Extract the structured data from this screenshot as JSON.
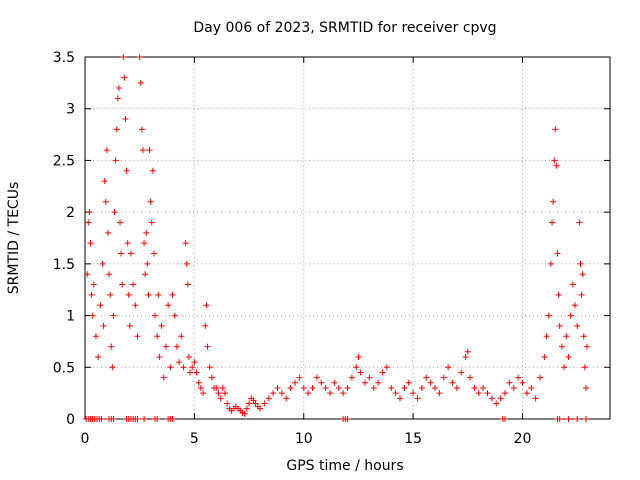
{
  "chart_data": {
    "type": "scatter",
    "title": "Day 006 of 2023, SRMTID for receiver cpvg",
    "xlabel": "GPS time / hours",
    "ylabel": "SRMTID / TECUs",
    "xlim": [
      0,
      24
    ],
    "ylim": [
      0,
      3.5
    ],
    "x_ticks": [
      0,
      5,
      10,
      15,
      20
    ],
    "y_ticks": [
      0,
      0.5,
      1,
      1.5,
      2,
      2.5,
      3,
      3.5
    ],
    "grid": true,
    "marker": "+",
    "series": [
      {
        "name": "SRMTID",
        "color": "#ff0000",
        "points": [
          [
            0.05,
            0
          ],
          [
            0.15,
            0
          ],
          [
            0.25,
            0
          ],
          [
            0.35,
            0
          ],
          [
            0.45,
            0
          ],
          [
            0.55,
            0
          ],
          [
            0.65,
            0
          ],
          [
            0.75,
            0
          ],
          [
            1.1,
            0
          ],
          [
            1.2,
            0
          ],
          [
            1.3,
            0
          ],
          [
            1.9,
            0
          ],
          [
            2.0,
            0
          ],
          [
            2.1,
            0
          ],
          [
            2.2,
            0
          ],
          [
            2.3,
            0
          ],
          [
            2.4,
            0
          ],
          [
            2.7,
            0
          ],
          [
            3.2,
            0
          ],
          [
            3.3,
            0
          ],
          [
            3.8,
            0
          ],
          [
            3.9,
            0
          ],
          [
            4.0,
            0
          ],
          [
            11.8,
            0
          ],
          [
            11.9,
            0
          ],
          [
            12.0,
            0
          ],
          [
            19.1,
            0
          ],
          [
            19.2,
            0
          ],
          [
            21.6,
            0
          ],
          [
            21.7,
            0
          ],
          [
            22.1,
            0
          ],
          [
            22.5,
            0
          ],
          [
            22.9,
            0
          ],
          [
            0.1,
            1.4
          ],
          [
            0.15,
            1.9
          ],
          [
            0.2,
            2.0
          ],
          [
            0.25,
            1.7
          ],
          [
            0.3,
            1.2
          ],
          [
            0.35,
            1.0
          ],
          [
            0.4,
            1.3
          ],
          [
            0.5,
            0.8
          ],
          [
            0.6,
            0.6
          ],
          [
            0.7,
            1.1
          ],
          [
            0.8,
            1.5
          ],
          [
            0.85,
            0.9
          ],
          [
            0.9,
            2.3
          ],
          [
            0.95,
            2.1
          ],
          [
            1.0,
            2.6
          ],
          [
            1.05,
            1.8
          ],
          [
            1.1,
            1.4
          ],
          [
            1.15,
            1.2
          ],
          [
            1.2,
            0.7
          ],
          [
            1.25,
            0.5
          ],
          [
            1.3,
            1.0
          ],
          [
            1.35,
            2.0
          ],
          [
            1.4,
            2.5
          ],
          [
            1.45,
            2.8
          ],
          [
            1.5,
            3.1
          ],
          [
            1.55,
            3.2
          ],
          [
            1.6,
            1.9
          ],
          [
            1.65,
            1.6
          ],
          [
            1.7,
            1.3
          ],
          [
            1.75,
            3.5
          ],
          [
            1.8,
            3.3
          ],
          [
            1.85,
            2.9
          ],
          [
            1.9,
            2.4
          ],
          [
            1.95,
            1.7
          ],
          [
            2.0,
            1.2
          ],
          [
            2.05,
            0.9
          ],
          [
            2.1,
            1.6
          ],
          [
            2.2,
            1.3
          ],
          [
            2.3,
            1.1
          ],
          [
            2.4,
            0.8
          ],
          [
            2.5,
            3.5
          ],
          [
            2.55,
            3.25
          ],
          [
            2.6,
            2.8
          ],
          [
            2.65,
            2.6
          ],
          [
            2.7,
            1.7
          ],
          [
            2.75,
            1.4
          ],
          [
            2.8,
            1.8
          ],
          [
            2.85,
            1.5
          ],
          [
            2.9,
            1.2
          ],
          [
            2.95,
            2.6
          ],
          [
            3.0,
            2.1
          ],
          [
            3.05,
            1.9
          ],
          [
            3.1,
            2.4
          ],
          [
            3.15,
            1.6
          ],
          [
            3.2,
            1.0
          ],
          [
            3.3,
            0.8
          ],
          [
            3.35,
            1.2
          ],
          [
            3.4,
            0.6
          ],
          [
            3.5,
            0.9
          ],
          [
            3.6,
            0.4
          ],
          [
            3.7,
            0.7
          ],
          [
            3.8,
            1.1
          ],
          [
            3.9,
            0.5
          ],
          [
            4.0,
            1.2
          ],
          [
            4.1,
            1.0
          ],
          [
            4.2,
            0.7
          ],
          [
            4.3,
            0.55
          ],
          [
            4.4,
            0.8
          ],
          [
            4.5,
            0.5
          ],
          [
            4.6,
            1.7
          ],
          [
            4.65,
            1.5
          ],
          [
            4.7,
            1.3
          ],
          [
            4.75,
            0.6
          ],
          [
            4.8,
            0.45
          ],
          [
            4.9,
            0.5
          ],
          [
            5.0,
            0.55
          ],
          [
            5.1,
            0.45
          ],
          [
            5.2,
            0.35
          ],
          [
            5.3,
            0.3
          ],
          [
            5.4,
            0.25
          ],
          [
            5.5,
            0.9
          ],
          [
            5.55,
            1.1
          ],
          [
            5.6,
            0.7
          ],
          [
            5.7,
            0.5
          ],
          [
            5.8,
            0.4
          ],
          [
            5.9,
            0.3
          ],
          [
            6.0,
            0.3
          ],
          [
            6.1,
            0.25
          ],
          [
            6.2,
            0.2
          ],
          [
            6.3,
            0.3
          ],
          [
            6.4,
            0.25
          ],
          [
            6.5,
            0.15
          ],
          [
            6.6,
            0.1
          ],
          [
            6.7,
            0.08
          ],
          [
            6.8,
            0.1
          ],
          [
            6.9,
            0.12
          ],
          [
            7.0,
            0.1
          ],
          [
            7.1,
            0.08
          ],
          [
            7.2,
            0.06
          ],
          [
            7.3,
            0.05
          ],
          [
            7.4,
            0.1
          ],
          [
            7.5,
            0.15
          ],
          [
            7.6,
            0.2
          ],
          [
            7.7,
            0.18
          ],
          [
            7.8,
            0.15
          ],
          [
            7.9,
            0.12
          ],
          [
            8.0,
            0.1
          ],
          [
            8.2,
            0.15
          ],
          [
            8.4,
            0.2
          ],
          [
            8.6,
            0.25
          ],
          [
            8.8,
            0.3
          ],
          [
            9.0,
            0.25
          ],
          [
            9.2,
            0.2
          ],
          [
            9.4,
            0.3
          ],
          [
            9.6,
            0.35
          ],
          [
            9.8,
            0.4
          ],
          [
            10.0,
            0.3
          ],
          [
            10.2,
            0.25
          ],
          [
            10.4,
            0.3
          ],
          [
            10.6,
            0.4
          ],
          [
            10.8,
            0.35
          ],
          [
            11.0,
            0.3
          ],
          [
            11.2,
            0.25
          ],
          [
            11.4,
            0.35
          ],
          [
            11.6,
            0.3
          ],
          [
            11.8,
            0.25
          ],
          [
            12.0,
            0.3
          ],
          [
            12.2,
            0.4
          ],
          [
            12.4,
            0.5
          ],
          [
            12.5,
            0.6
          ],
          [
            12.6,
            0.45
          ],
          [
            12.8,
            0.35
          ],
          [
            13.0,
            0.4
          ],
          [
            13.2,
            0.3
          ],
          [
            13.4,
            0.35
          ],
          [
            13.6,
            0.45
          ],
          [
            13.8,
            0.5
          ],
          [
            14.0,
            0.3
          ],
          [
            14.2,
            0.25
          ],
          [
            14.4,
            0.2
          ],
          [
            14.6,
            0.3
          ],
          [
            14.8,
            0.35
          ],
          [
            15.0,
            0.25
          ],
          [
            15.2,
            0.2
          ],
          [
            15.4,
            0.3
          ],
          [
            15.6,
            0.4
          ],
          [
            15.8,
            0.35
          ],
          [
            16.0,
            0.3
          ],
          [
            16.2,
            0.25
          ],
          [
            16.4,
            0.4
          ],
          [
            16.6,
            0.5
          ],
          [
            16.8,
            0.35
          ],
          [
            17.0,
            0.3
          ],
          [
            17.2,
            0.45
          ],
          [
            17.4,
            0.6
          ],
          [
            17.5,
            0.65
          ],
          [
            17.6,
            0.4
          ],
          [
            17.8,
            0.3
          ],
          [
            18.0,
            0.25
          ],
          [
            18.2,
            0.3
          ],
          [
            18.4,
            0.25
          ],
          [
            18.6,
            0.2
          ],
          [
            18.8,
            0.15
          ],
          [
            19.0,
            0.2
          ],
          [
            19.2,
            0.25
          ],
          [
            19.4,
            0.35
          ],
          [
            19.6,
            0.3
          ],
          [
            19.8,
            0.4
          ],
          [
            20.0,
            0.35
          ],
          [
            20.2,
            0.25
          ],
          [
            20.4,
            0.3
          ],
          [
            20.6,
            0.2
          ],
          [
            20.8,
            0.4
          ],
          [
            21.0,
            0.6
          ],
          [
            21.1,
            0.8
          ],
          [
            21.2,
            1.0
          ],
          [
            21.3,
            1.5
          ],
          [
            21.35,
            1.9
          ],
          [
            21.4,
            2.1
          ],
          [
            21.45,
            2.5
          ],
          [
            21.5,
            2.8
          ],
          [
            21.55,
            2.45
          ],
          [
            21.6,
            1.6
          ],
          [
            21.65,
            1.2
          ],
          [
            21.7,
            0.9
          ],
          [
            21.8,
            0.7
          ],
          [
            21.9,
            0.5
          ],
          [
            22.0,
            0.8
          ],
          [
            22.1,
            0.6
          ],
          [
            22.2,
            1.0
          ],
          [
            22.3,
            1.3
          ],
          [
            22.4,
            1.1
          ],
          [
            22.5,
            0.9
          ],
          [
            22.6,
            1.9
          ],
          [
            22.65,
            1.5
          ],
          [
            22.7,
            1.2
          ],
          [
            22.75,
            1.4
          ],
          [
            22.8,
            0.8
          ],
          [
            22.85,
            0.5
          ],
          [
            22.9,
            0.3
          ],
          [
            22.95,
            0.7
          ]
        ]
      }
    ]
  }
}
